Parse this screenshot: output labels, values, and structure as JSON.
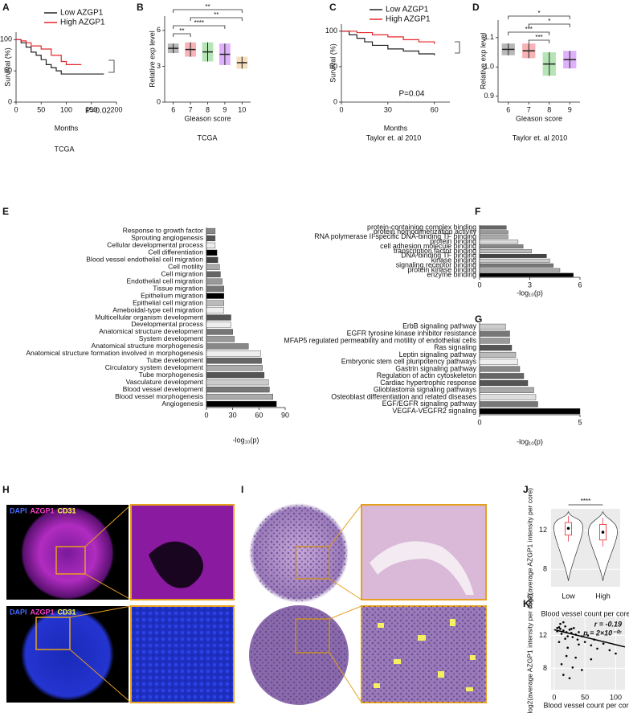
{
  "chart_data": [
    {
      "panel": "A",
      "type": "line",
      "step": true,
      "xlabel": "Months",
      "ylabel": "Survival (%)",
      "caption": "TCGA",
      "xlim": [
        0,
        200
      ],
      "xticks": [
        0,
        50,
        100,
        150,
        200
      ],
      "ylim": [
        0,
        112
      ],
      "yticks": [
        0,
        50,
        100
      ],
      "annotation": "P=0.02",
      "series": [
        {
          "name": "Low AZGP1",
          "color": "#222222",
          "x": [
            0,
            10,
            20,
            30,
            40,
            50,
            60,
            70,
            80,
            90,
            100,
            175
          ],
          "values": [
            100,
            95,
            88,
            80,
            75,
            68,
            60,
            55,
            50,
            45,
            45,
            45
          ]
        },
        {
          "name": "High AZGP1",
          "color": "#e8262a",
          "x": [
            0,
            10,
            20,
            30,
            50,
            70,
            90,
            100,
            130
          ],
          "values": [
            100,
            98,
            95,
            90,
            85,
            75,
            65,
            60,
            60
          ]
        }
      ]
    },
    {
      "panel": "B",
      "type": "dot",
      "xlabel": "Gleason score",
      "ylabel": "Relative exp level",
      "caption": "TCGA",
      "categories": [
        "6",
        "7",
        "8",
        "9",
        "10"
      ],
      "values": [
        4.5,
        4.4,
        4.2,
        4.0,
        3.3
      ],
      "errors": [
        0.4,
        0.6,
        0.8,
        0.9,
        0.5
      ],
      "colors": [
        "#333333",
        "#e8262a",
        "#2bb52b",
        "#a020f0",
        "#e8a04a"
      ],
      "ylim": [
        0,
        7.2
      ],
      "yticks": [
        0,
        3,
        6
      ],
      "significance": [
        "**",
        "**",
        "****",
        "**"
      ]
    },
    {
      "panel": "C",
      "type": "line",
      "step": true,
      "xlabel": "Months",
      "ylabel": "Survival (%)",
      "caption": "Taylor et. al 2010",
      "xlim": [
        0,
        70
      ],
      "xticks": [
        0,
        30,
        60
      ],
      "ylim": [
        0,
        110
      ],
      "yticks": [
        0,
        50,
        100
      ],
      "annotation": "P=0.04",
      "series": [
        {
          "name": "Low AZGP1",
          "color": "#222222",
          "x": [
            0,
            5,
            10,
            15,
            20,
            30,
            40,
            50,
            60
          ],
          "values": [
            100,
            95,
            90,
            85,
            80,
            75,
            72,
            68,
            66
          ]
        },
        {
          "name": "High AZGP1",
          "color": "#e8262a",
          "x": [
            0,
            10,
            20,
            30,
            40,
            50,
            60
          ],
          "values": [
            100,
            98,
            95,
            92,
            88,
            85,
            82
          ]
        }
      ]
    },
    {
      "panel": "D",
      "type": "dot",
      "xlabel": "Gleason score",
      "ylabel": "Relative exp level",
      "caption": "Taylor et. al 2010",
      "categories": [
        "6",
        "7",
        "8",
        "9"
      ],
      "values": [
        1.06,
        1.055,
        1.01,
        1.025
      ],
      "errors": [
        0.02,
        0.025,
        0.04,
        0.03
      ],
      "colors": [
        "#333333",
        "#e8262a",
        "#2bb52b",
        "#a020f0"
      ],
      "ylim": [
        0.88,
        1.16
      ],
      "yticks": [
        0.9,
        {
          "value": 1.0,
          "label": "1.0"
        },
        1.1
      ],
      "significance": [
        "*",
        "*",
        "***",
        "***"
      ]
    },
    {
      "panel": "E",
      "type": "bar",
      "orientation": "horizontal",
      "xlabel": "-log₁₀(p)",
      "categories": [
        "Response to growth factor",
        "Sprouting angiogenesis",
        "Cellular developmental process",
        "Cell differentiation",
        "Blood vessel endothelial cell migration",
        "Cell motility",
        "Cell migration",
        "Endothelial cell migration",
        "Tissue migration",
        "Epithelium migration",
        "Epithelial cell migration",
        "Ameboidal-type cell migration",
        "Multicellular organism development",
        "Developmental process",
        "Anatomical structure development",
        "System development",
        "Anatomical structure morphogenesis",
        "Anatomical structure formation involved in morphogenesis",
        "Tube development",
        "Circulatory system development",
        "Tube morphogenesis",
        "Vasculature development",
        "Blood vessel development",
        "Blood vessel morphogenesis",
        "Angiogenesis"
      ],
      "values": [
        10,
        10,
        10,
        12,
        13,
        15,
        16,
        18,
        20,
        20,
        20,
        20,
        28,
        28,
        30,
        32,
        48,
        62,
        63,
        64,
        66,
        71,
        72,
        76,
        80
      ],
      "colors": [
        "#888888",
        "#555555",
        "#eeeeee",
        "#000000",
        "#444444",
        "#aaaaaa",
        "#666666",
        "#999999",
        "#777777",
        "#000000",
        "#bbbbbb",
        "#eeeeee",
        "#555555",
        "#eeeeee",
        "#777777",
        "#999999",
        "#888888",
        "#eeeeee",
        "#666666",
        "#aaaaaa",
        "#555555",
        "#cccccc",
        "#777777",
        "#aaaaaa",
        "#000000"
      ],
      "xlim": [
        0,
        90
      ],
      "xticks": [
        0,
        30,
        60,
        90
      ]
    },
    {
      "panel": "F",
      "type": "bar",
      "orientation": "horizontal",
      "xlabel": "-log₁₀(p)",
      "categories": [
        "protein-containing complex binding",
        "protein homodimerization activity",
        "RNA polymerase II-specific DNA-binding TF binding",
        "protein binding",
        "cell adhesion molecule binding",
        "transcription factor binding",
        "DNA-binding TF binding",
        "kinase binding",
        "signaling receptor binding",
        "protein kinase binding",
        "enzyme binding"
      ],
      "values": [
        1.6,
        1.7,
        1.7,
        2.3,
        2.6,
        3.1,
        4.0,
        4.2,
        4.4,
        4.8,
        5.6
      ],
      "colors": [
        "#666666",
        "#999999",
        "#aaaaaa",
        "#dddddd",
        "#888888",
        "#bbbbbb",
        "#444444",
        "#cccccc",
        "#777777",
        "#aaaaaa",
        "#000000"
      ],
      "xlim": [
        0,
        6
      ],
      "xticks": [
        0,
        3,
        6
      ]
    },
    {
      "panel": "G",
      "type": "bar",
      "orientation": "horizontal",
      "xlabel": "-log₁₀(p)",
      "categories": [
        "ErbB signaling pathway",
        "EGFR tyrosine kinase inhibitor resistance",
        "MFAP5 regulated permeability and motility of endothelial cells",
        "Ras signaling",
        "Leptin signaling pathway",
        "Embryonic stem cell pluripotency pathways",
        "Gastrin signaling pathway",
        "Regulation of actin cytoskeleton",
        "Cardiac hypertrophic response",
        "Glioblastoma signaling pathways",
        "Osteoblast differentiation and related diseases",
        "EGF/EGFR signaling pathway",
        "VEGFA-VEGFR2 signaling"
      ],
      "values": [
        1.3,
        1.5,
        1.5,
        1.6,
        1.8,
        1.9,
        2.0,
        2.2,
        2.4,
        2.7,
        2.8,
        2.9,
        5.0
      ],
      "colors": [
        "#cccccc",
        "#777777",
        "#999999",
        "#555555",
        "#bbbbbb",
        "#eeeeee",
        "#888888",
        "#666666",
        "#555555",
        "#aaaaaa",
        "#dddddd",
        "#777777",
        "#000000"
      ],
      "xlim": [
        0,
        5
      ],
      "xticks": [
        0,
        5
      ]
    },
    {
      "panel": "J",
      "type": "violin",
      "xlabel": "Blood vessel count per core",
      "ylabel": "log2(average AZGP1 intensity per core)",
      "categories": [
        "Low",
        "High"
      ],
      "medians": [
        12.2,
        11.8
      ],
      "q1": [
        11.5,
        11.0
      ],
      "q3": [
        12.8,
        12.6
      ],
      "ylim": [
        6.2,
        14.2
      ],
      "yticks": [
        8,
        12
      ],
      "grid": true,
      "significance": [
        "****"
      ]
    },
    {
      "panel": "K",
      "type": "scatter",
      "xlabel": "Blood vessel count per core",
      "ylabel": "log2(average AZGP1 intensity per core)",
      "annotations": [
        "r = -0.19",
        "p = 2×10⁻⁰⁷"
      ],
      "x": [
        5,
        8,
        10,
        12,
        15,
        18,
        20,
        22,
        25,
        28,
        30,
        32,
        35,
        38,
        40,
        45,
        50,
        55,
        60,
        65,
        70,
        80,
        90,
        100,
        12,
        15,
        20,
        25,
        30,
        10,
        18,
        22,
        35,
        45,
        5,
        8,
        15,
        28,
        40,
        60
      ],
      "values": [
        12.5,
        13,
        12.8,
        12.2,
        12.6,
        13.1,
        12.4,
        11.9,
        12.7,
        12.3,
        11.8,
        12.9,
        12.1,
        11.5,
        12.4,
        11.9,
        11.2,
        12,
        10.8,
        11.5,
        10.4,
        11,
        10.2,
        9.8,
        8.5,
        7.2,
        9.5,
        6.8,
        8.1,
        13.4,
        11.6,
        10.5,
        9.3,
        7.8,
        12.9,
        11.2,
        13.6,
        12.8,
        10.9,
        9.1
      ],
      "fit_x": [
        0,
        115
      ],
      "fit_y": [
        12.7,
        10.6
      ],
      "xlim": [
        -5,
        115
      ],
      "xticks": [
        0,
        50,
        100
      ],
      "ylim": [
        5.4,
        14.2
      ],
      "yticks": [
        8,
        12
      ],
      "grid": true
    }
  ],
  "image_panels": [
    {
      "panel": "H",
      "stains": [
        "DAPI",
        "AZGP1",
        "CD31"
      ],
      "stain_colors": [
        "#4a6bff",
        "#ff3fd0",
        "#ffff3f"
      ]
    },
    {
      "panel": "I"
    }
  ]
}
